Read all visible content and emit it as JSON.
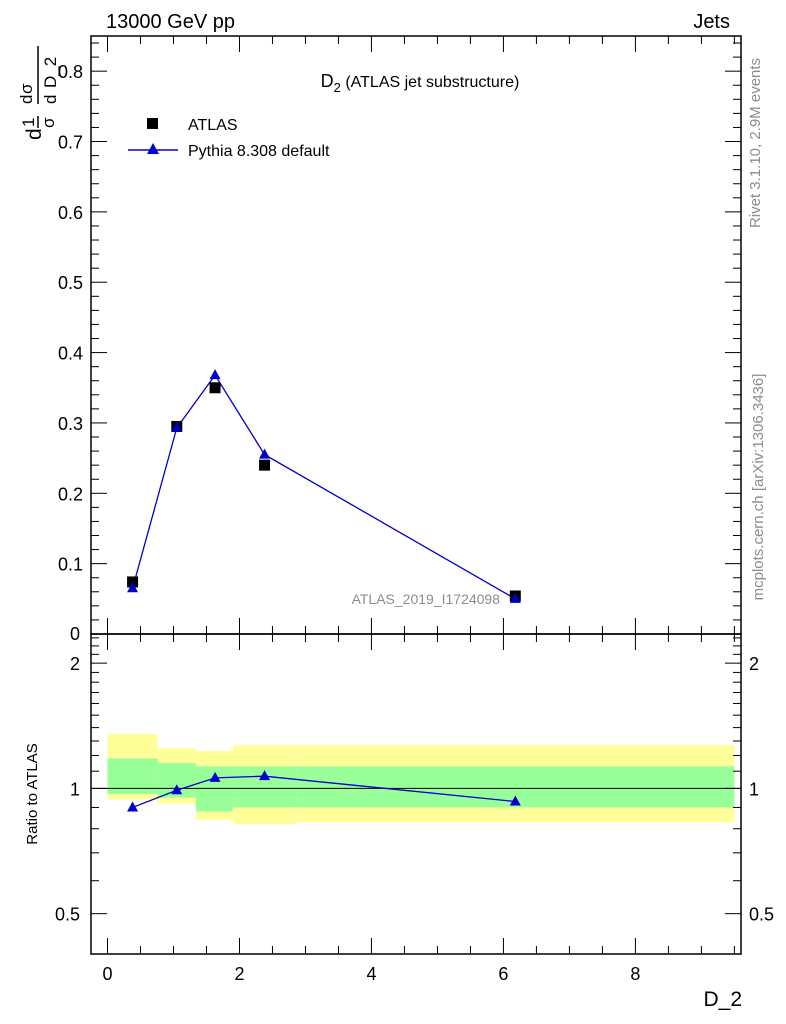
{
  "header": {
    "left": "13000 GeV pp",
    "right": "Jets"
  },
  "side_labels": {
    "rivet": "Rivet 3.1.10,  2.9M events",
    "mcplots": "mcplots.cern.ch [arXiv:1306.3436]"
  },
  "chart_data": [
    {
      "type": "scatter",
      "title_main": "D",
      "title_sub": "2",
      "title_rest": " (ATLAS jet substructure)",
      "watermark": "ATLAS_2019_I1724098",
      "ylabel_parts": [
        "d",
        "1",
        "σ",
        "d",
        "σ",
        "d",
        "D_2"
      ],
      "xlim": [
        -0.25,
        9.6
      ],
      "ylim": [
        0,
        0.85
      ],
      "yticks": [
        {
          "v": 0.1,
          "label": "0.1"
        },
        {
          "v": 0.2,
          "label": "0.2"
        },
        {
          "v": 0.3,
          "label": "0.3"
        },
        {
          "v": 0.4,
          "label": "0.4"
        },
        {
          "v": 0.5,
          "label": "0.5"
        },
        {
          "v": 0.6,
          "label": "0.6"
        },
        {
          "v": 0.7,
          "label": "0.7"
        },
        {
          "v": 0.8,
          "label": "0.8"
        }
      ],
      "y_zero_label": "0",
      "legend": [
        {
          "name": "ATLAS",
          "marker": "square",
          "color": "#000000"
        },
        {
          "name": "Pythia 8.308 default",
          "marker": "triangle",
          "color": "#0000cc"
        }
      ],
      "series": [
        {
          "name": "ATLAS",
          "x": [
            0.38,
            1.05,
            1.63,
            2.38,
            6.18
          ],
          "y": [
            0.074,
            0.295,
            0.35,
            0.24,
            0.054
          ]
        },
        {
          "name": "Pythia 8.308 default",
          "x": [
            0.38,
            1.05,
            1.63,
            2.38,
            6.18
          ],
          "y": [
            0.065,
            0.293,
            0.368,
            0.255,
            0.05
          ]
        }
      ]
    },
    {
      "type": "line",
      "ylabel": "Ratio to ATLAS",
      "xlabel": "D_2",
      "xlim": [
        -0.25,
        9.6
      ],
      "ylim": [
        0.4,
        2.35
      ],
      "log_y": true,
      "xticks": [
        {
          "v": 0,
          "label": "0"
        },
        {
          "v": 2,
          "label": "2"
        },
        {
          "v": 4,
          "label": "4"
        },
        {
          "v": 6,
          "label": "6"
        },
        {
          "v": 8,
          "label": "8"
        }
      ],
      "yticks": [
        {
          "v": 0.5,
          "label": "0.5"
        },
        {
          "v": 1,
          "label": "1"
        },
        {
          "v": 2,
          "label": "2"
        }
      ],
      "bands": [
        {
          "x0": 0.0,
          "x1": 0.76,
          "y_lo": 0.94,
          "y_hi": 1.35,
          "g_lo": 0.97,
          "g_hi": 1.18
        },
        {
          "x0": 0.76,
          "x1": 1.34,
          "y_lo": 0.92,
          "y_hi": 1.25,
          "g_lo": 0.95,
          "g_hi": 1.15
        },
        {
          "x0": 1.34,
          "x1": 1.9,
          "y_lo": 0.84,
          "y_hi": 1.23,
          "g_lo": 0.88,
          "g_hi": 1.13
        },
        {
          "x0": 1.9,
          "x1": 2.86,
          "y_lo": 0.82,
          "y_hi": 1.27,
          "g_lo": 0.9,
          "g_hi": 1.13
        },
        {
          "x0": 2.86,
          "x1": 9.5,
          "y_lo": 0.83,
          "y_hi": 1.27,
          "g_lo": 0.9,
          "g_hi": 1.13
        }
      ],
      "series": [
        {
          "name": "Pythia 8.308 default",
          "x": [
            0.38,
            1.05,
            1.63,
            2.38,
            6.18
          ],
          "y": [
            0.9,
            0.99,
            1.06,
            1.07,
            0.93
          ]
        }
      ]
    }
  ]
}
